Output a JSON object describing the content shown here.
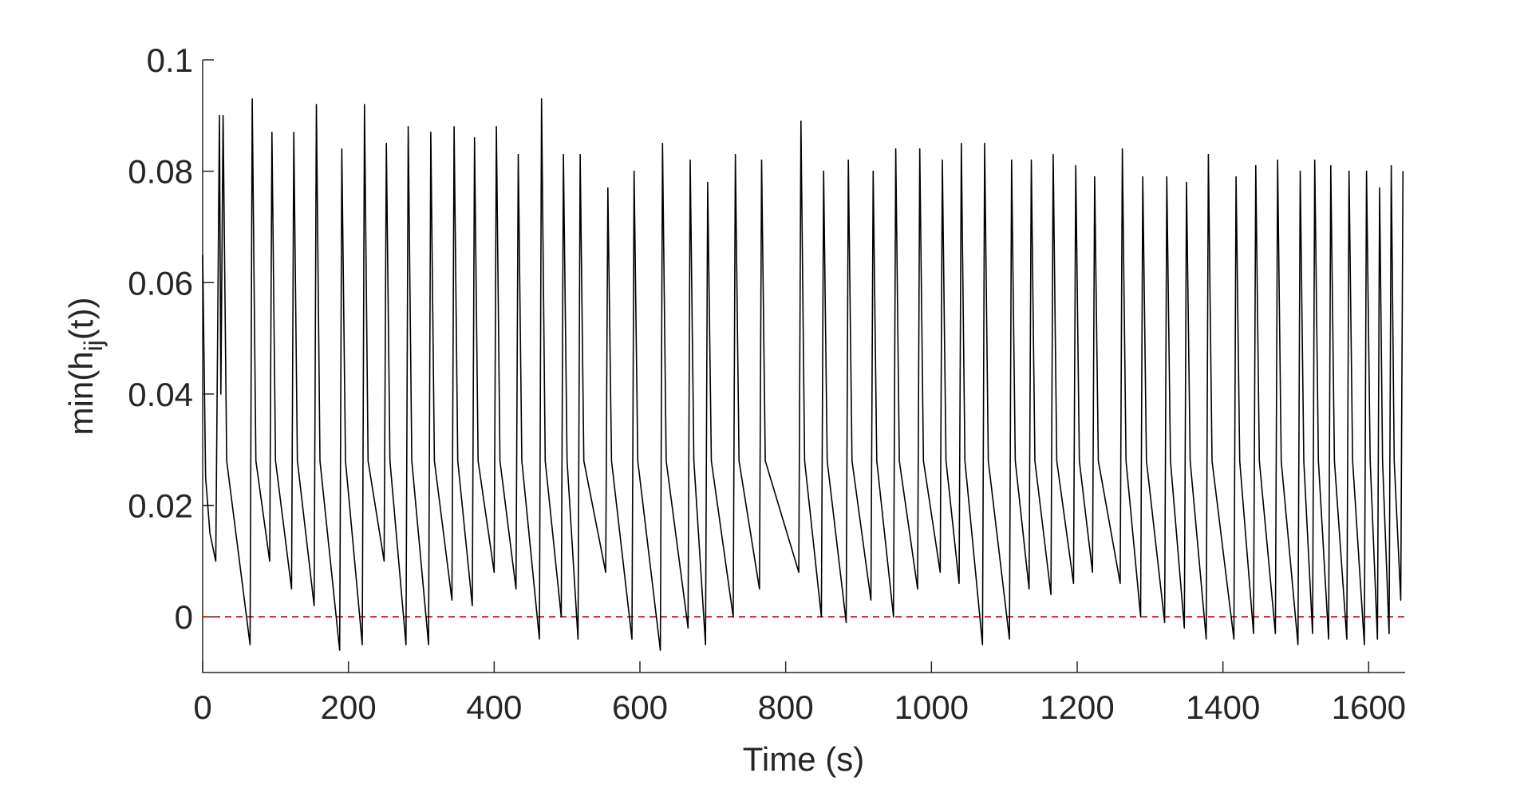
{
  "chart_data": {
    "type": "line",
    "xlabel": "Time (s)",
    "ylabel": [
      "min(h",
      "ij",
      "(t))"
    ],
    "x": [
      0,
      4,
      10,
      18,
      23,
      25,
      28,
      33,
      65,
      68,
      73,
      92,
      95,
      100,
      122,
      125,
      130,
      153,
      156,
      161,
      188,
      191,
      196,
      219,
      222,
      227,
      249,
      252,
      257,
      279,
      282,
      287,
      310,
      313,
      318,
      342,
      345,
      350,
      370,
      373,
      378,
      400,
      403,
      408,
      430,
      433,
      438,
      462,
      465,
      470,
      492,
      495,
      500,
      515,
      518,
      523,
      553,
      556,
      561,
      589,
      592,
      597,
      628,
      631,
      636,
      666,
      669,
      674,
      690,
      693,
      698,
      728,
      731,
      736,
      764,
      767,
      772,
      818,
      821,
      826,
      849,
      852,
      857,
      883,
      886,
      891,
      917,
      920,
      925,
      948,
      951,
      956,
      981,
      984,
      989,
      1012,
      1015,
      1020,
      1038,
      1041,
      1046,
      1070,
      1073,
      1078,
      1107,
      1110,
      1115,
      1134,
      1137,
      1142,
      1164,
      1167,
      1172,
      1195,
      1198,
      1203,
      1221,
      1224,
      1229,
      1259,
      1262,
      1267,
      1287,
      1290,
      1295,
      1320,
      1323,
      1328,
      1347,
      1350,
      1355,
      1377,
      1380,
      1385,
      1415,
      1418,
      1423,
      1442,
      1445,
      1450,
      1472,
      1475,
      1480,
      1503,
      1506,
      1511,
      1523,
      1526,
      1531,
      1545,
      1548,
      1553,
      1570,
      1573,
      1578,
      1594,
      1597,
      1602,
      1612,
      1615,
      1619,
      1628,
      1631,
      1635,
      1644,
      1647
    ],
    "series": [
      {
        "color": "#000000",
        "values": [
          0.065,
          0.025,
          0.015,
          0.01,
          0.09,
          0.04,
          0.09,
          0.028,
          -0.005,
          0.093,
          0.028,
          0.01,
          0.087,
          0.028,
          0.005,
          0.087,
          0.028,
          0.002,
          0.092,
          0.028,
          -0.006,
          0.084,
          0.028,
          -0.005,
          0.092,
          0.028,
          0.01,
          0.085,
          0.028,
          -0.005,
          0.088,
          0.028,
          -0.005,
          0.087,
          0.028,
          0.003,
          0.088,
          0.028,
          0.002,
          0.086,
          0.028,
          0.008,
          0.088,
          0.028,
          0.005,
          0.083,
          0.028,
          -0.004,
          0.093,
          0.028,
          0.0,
          0.083,
          0.028,
          -0.004,
          0.083,
          0.028,
          0.008,
          0.077,
          0.028,
          -0.004,
          0.08,
          0.028,
          -0.006,
          0.085,
          0.028,
          -0.002,
          0.082,
          0.028,
          -0.005,
          0.078,
          0.028,
          0.0,
          0.083,
          0.028,
          0.005,
          0.082,
          0.028,
          0.008,
          0.089,
          0.028,
          0.0,
          0.08,
          0.028,
          -0.001,
          0.082,
          0.028,
          0.003,
          0.08,
          0.028,
          0.0,
          0.084,
          0.028,
          0.005,
          0.084,
          0.028,
          0.008,
          0.082,
          0.028,
          0.006,
          0.085,
          0.028,
          -0.005,
          0.085,
          0.028,
          -0.004,
          0.082,
          0.028,
          0.005,
          0.082,
          0.028,
          0.004,
          0.083,
          0.028,
          0.006,
          0.081,
          0.028,
          0.008,
          0.079,
          0.028,
          0.006,
          0.084,
          0.028,
          0.0,
          0.079,
          0.028,
          -0.001,
          0.079,
          0.028,
          -0.002,
          0.078,
          0.028,
          -0.004,
          0.083,
          0.028,
          -0.004,
          0.079,
          0.028,
          -0.003,
          0.081,
          0.028,
          -0.003,
          0.082,
          0.028,
          -0.005,
          0.08,
          0.028,
          -0.003,
          0.082,
          0.028,
          -0.004,
          0.081,
          0.028,
          -0.004,
          0.08,
          0.028,
          -0.005,
          0.08,
          0.028,
          -0.004,
          0.077,
          0.028,
          -0.003,
          0.081,
          0.028,
          0.003,
          0.08
        ]
      }
    ],
    "hline": 0,
    "hline_color": "#e41a1c",
    "xlim": [
      0,
      1650
    ],
    "xticks": [
      0,
      200,
      400,
      600,
      800,
      1000,
      1200,
      1400,
      1600
    ],
    "ylim": [
      -0.01,
      0.1
    ],
    "yticks": [
      0,
      0.02,
      0.04,
      0.06,
      0.08,
      0.1
    ]
  }
}
